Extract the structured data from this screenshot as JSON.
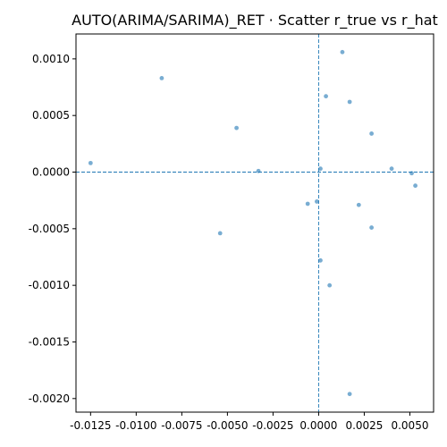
{
  "chart_data": {
    "type": "scatter",
    "title": "AUTO(ARIMA/SARIMA)_RET · Scatter r_true vs r_hat",
    "xlabel": "",
    "ylabel": "",
    "xlim": [
      -0.0133,
      0.0063
    ],
    "ylim": [
      -0.00212,
      0.00122
    ],
    "xticks": [
      -0.0125,
      -0.01,
      -0.0075,
      -0.005,
      -0.0025,
      0.0,
      0.0025,
      0.005
    ],
    "xtick_labels": [
      "-0.0125",
      "-0.0100",
      "-0.0075",
      "-0.0050",
      "-0.0025",
      "0.0000",
      "0.0025",
      "0.0050"
    ],
    "yticks": [
      -0.002,
      -0.0015,
      -0.001,
      -0.0005,
      0.0,
      0.0005,
      0.001
    ],
    "ytick_labels": [
      "-0.0020",
      "-0.0015",
      "-0.0010",
      "-0.0005",
      "0.0000",
      "0.0005",
      "0.0010"
    ],
    "reference_lines": {
      "x": 0.0,
      "y": 0.0,
      "style": "dashed"
    },
    "grid": false,
    "point_color": "#1f77b4",
    "reference_line_color": "#1f77b4",
    "points": [
      {
        "x": -0.0125,
        "y": 8e-05
      },
      {
        "x": -0.0086,
        "y": 0.00083
      },
      {
        "x": -0.0045,
        "y": 0.00039
      },
      {
        "x": -0.0033,
        "y": 1e-05
      },
      {
        "x": -0.0054,
        "y": -0.00054
      },
      {
        "x": -0.0006,
        "y": -0.00028
      },
      {
        "x": -0.0001,
        "y": -0.00026
      },
      {
        "x": 0.0001,
        "y": 3e-05
      },
      {
        "x": 0.0001,
        "y": -0.00078
      },
      {
        "x": 0.0004,
        "y": 0.00067
      },
      {
        "x": 0.0006,
        "y": -0.001
      },
      {
        "x": 0.0013,
        "y": 0.00106
      },
      {
        "x": 0.0017,
        "y": 0.00062
      },
      {
        "x": 0.0017,
        "y": -0.00196
      },
      {
        "x": 0.0022,
        "y": -0.00029
      },
      {
        "x": 0.0029,
        "y": 0.00034
      },
      {
        "x": 0.0029,
        "y": -0.00049
      },
      {
        "x": 0.004,
        "y": 3e-05
      },
      {
        "x": 0.0051,
        "y": -1e-05
      },
      {
        "x": 0.0053,
        "y": -0.00012
      }
    ]
  }
}
